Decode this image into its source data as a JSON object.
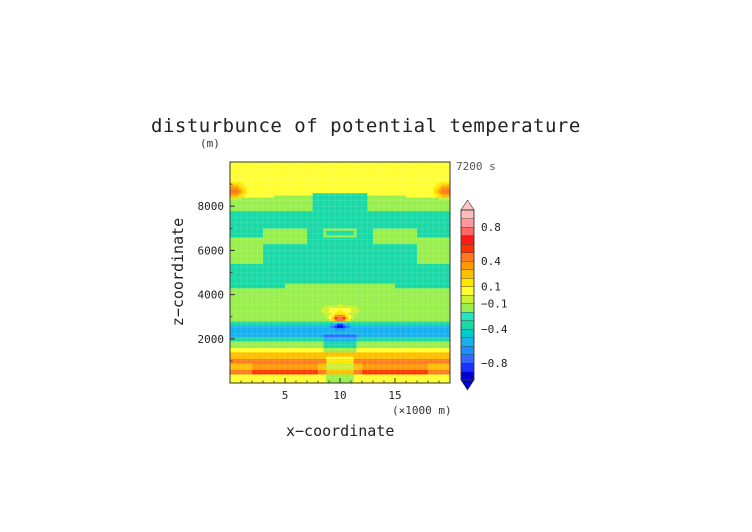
{
  "chart_data": {
    "type": "heatmap",
    "title": "disturbunce of potential temperature",
    "xlabel": "x−coordinate",
    "ylabel": "z−coordinate",
    "x_unit": "(×1000 m)",
    "y_unit": "(m)",
    "time_label": "7200 s",
    "xlim": [
      0,
      20
    ],
    "ylim": [
      0,
      10000
    ],
    "x_ticks": [
      5,
      10,
      15
    ],
    "x_tick_labels": [
      "5",
      "10",
      "15"
    ],
    "y_ticks": [
      2000,
      4000,
      6000,
      8000
    ],
    "y_tick_labels": [
      "2000",
      "4000",
      "6000",
      "8000"
    ],
    "colorbar": {
      "levels": [
        -1.0,
        -0.9,
        -0.8,
        -0.7,
        -0.6,
        -0.5,
        -0.4,
        -0.3,
        -0.2,
        -0.1,
        0.0,
        0.1,
        0.2,
        0.3,
        0.4,
        0.5,
        0.6,
        0.7,
        0.8,
        0.9,
        1.0
      ],
      "colors": [
        "#0000cc",
        "#1a33ff",
        "#3366ff",
        "#1f8fff",
        "#19b0ee",
        "#00cccc",
        "#19d9a6",
        "#26e6bf",
        "#99f04c",
        "#ccf033",
        "#ffff33",
        "#ffe600",
        "#ffbf00",
        "#ff9900",
        "#ff7a1f",
        "#ff3300",
        "#ff1a1a",
        "#ff6666",
        "#ff9999",
        "#ffbbbb"
      ],
      "under_color": "#0000cc",
      "over_color": "#ffc0c8",
      "tick_values": [
        0.8,
        0.4,
        0.1,
        -0.1,
        -0.4,
        -0.8
      ],
      "tick_labels": [
        "0.8",
        "0.4",
        "0.1",
        "−0.1",
        "−0.4",
        "−0.8"
      ]
    },
    "field_description_bands": [
      {
        "z": [
          0,
          400
        ],
        "value": 0.05
      },
      {
        "z": [
          400,
          600
        ],
        "value": 0.45
      },
      {
        "z": [
          600,
          900
        ],
        "value": 0.2
      },
      {
        "z": [
          900,
          1150
        ],
        "value": 0.4
      },
      {
        "z": [
          1150,
          1450
        ],
        "value": 0.25
      },
      {
        "z": [
          1450,
          1650
        ],
        "value": 0.05
      },
      {
        "z": [
          1650,
          1900
        ],
        "value": -0.15
      },
      {
        "z": [
          1900,
          2150
        ],
        "value": -0.35
      },
      {
        "z": [
          2150,
          2600
        ],
        "value": -0.55
      },
      {
        "z": [
          2600,
          2850
        ],
        "value": -0.35
      },
      {
        "z": [
          2850,
          3200
        ],
        "value": -0.15
      },
      {
        "z": [
          3200,
          4500
        ],
        "value": -0.15
      },
      {
        "z": [
          4500,
          5200
        ],
        "value": -0.35
      },
      {
        "z": [
          5200,
          7800
        ],
        "value": -0.35
      },
      {
        "z": [
          7800,
          8400
        ],
        "value": -0.15
      },
      {
        "z": [
          8400,
          10000
        ],
        "value": 0.05
      }
    ]
  }
}
